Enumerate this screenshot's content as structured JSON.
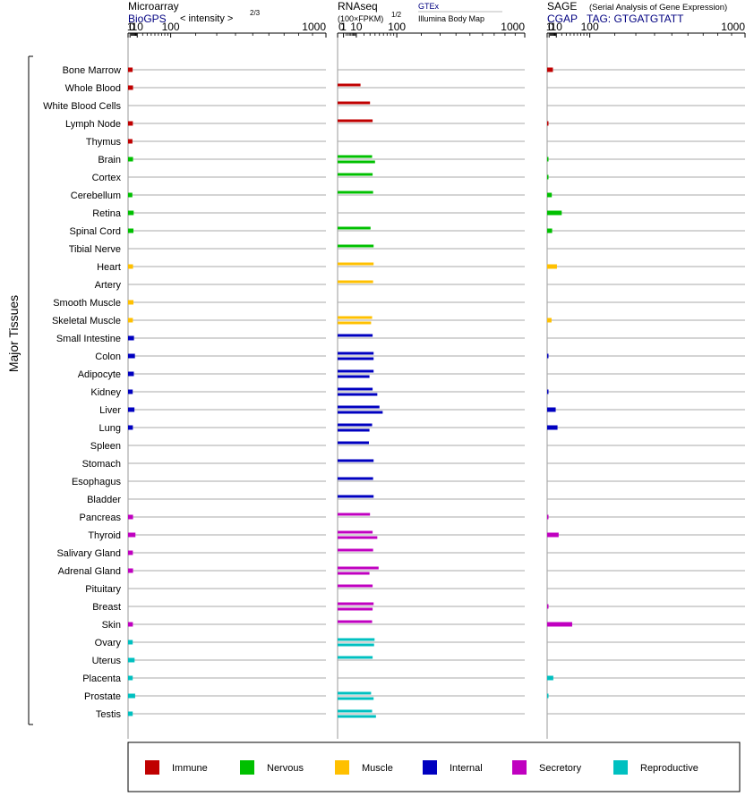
{
  "y_axis_label": "Major Tissues",
  "tissues": [
    "Bone Marrow",
    "Whole Blood",
    "White Blood Cells",
    "Lymph Node",
    "Thymus",
    "Brain",
    "Cortex",
    "Cerebellum",
    "Retina",
    "Spinal Cord",
    "Tibial Nerve",
    "Heart",
    "Artery",
    "Smooth Muscle",
    "Skeletal Muscle",
    "Small Intestine",
    "Colon",
    "Adipocyte",
    "Kidney",
    "Liver",
    "Lung",
    "Spleen",
    "Stomach",
    "Esophagus",
    "Bladder",
    "Pancreas",
    "Thyroid",
    "Salivary Gland",
    "Adrenal Gland",
    "Pituitary",
    "Breast",
    "Skin",
    "Ovary",
    "Uterus",
    "Placenta",
    "Prostate",
    "Testis"
  ],
  "categories": {
    "Immune": "#c00000",
    "Nervous": "#00c000",
    "Muscle": "#ffc000",
    "Internal": "#0000c0",
    "Secretory": "#c000c0",
    "Reproductive": "#00c0c0"
  },
  "legend": [
    "Immune",
    "Nervous",
    "Muscle",
    "Internal",
    "Secretory",
    "Reproductive"
  ],
  "tissue_category": [
    "Immune",
    "Immune",
    "Immune",
    "Immune",
    "Immune",
    "Nervous",
    "Nervous",
    "Nervous",
    "Nervous",
    "Nervous",
    "Nervous",
    "Muscle",
    "Muscle",
    "Muscle",
    "Muscle",
    "Internal",
    "Internal",
    "Internal",
    "Internal",
    "Internal",
    "Internal",
    "Internal",
    "Internal",
    "Internal",
    "Internal",
    "Secretory",
    "Secretory",
    "Secretory",
    "Secretory",
    "Secretory",
    "Secretory",
    "Secretory",
    "Reproductive",
    "Reproductive",
    "Reproductive",
    "Reproductive",
    "Reproductive"
  ],
  "panels": [
    {
      "title": "Microarray",
      "subtitle": "BioGPS",
      "subtitle_extra": "< intensity >",
      "exponent": "2/3"
    },
    {
      "title": "RNAseq",
      "unit": "(100×FPKM)",
      "exponent": "1/2",
      "source_a": "GTEx",
      "source_b": "Illumina Body Map"
    },
    {
      "title": "SAGE",
      "title_extra": "(Serial Analysis of Gene Expression)",
      "subtitle": "CGAP",
      "tag": "TAG: GTGATGTATT"
    }
  ],
  "chart_data": {
    "type": "bar",
    "orientation": "horizontal",
    "x_ticks": [
      "0",
      "1",
      "10",
      "100",
      "1000"
    ],
    "x_tick_values": [
      0,
      1,
      10,
      100,
      1000
    ],
    "xlim": [
      0,
      1000
    ],
    "x_scale": "power",
    "panels": [
      {
        "name": "Microarray",
        "exponent": 0.6667,
        "values": [
          3.5,
          4,
          null,
          3.8,
          3.3,
          4,
          null,
          3.2,
          4.8,
          4.5,
          null,
          4,
          null,
          4.5,
          3.8,
          5.2,
          6.5,
          5,
          3.6,
          5.8,
          3.8,
          null,
          null,
          null,
          null,
          4,
          7.2,
          3.8,
          4,
          null,
          null,
          3.8,
          3.6,
          6,
          3.6,
          6.8,
          3.6
        ],
        "values_b": []
      },
      {
        "name": "RNAseq",
        "exponent": 0.5,
        "values": [
          null,
          15,
          null,
          null,
          null,
          35,
          null,
          null,
          null,
          null,
          null,
          null,
          null,
          null,
          null,
          null,
          null,
          null,
          null,
          null,
          null,
          null,
          null,
          null,
          null,
          null,
          null,
          null,
          null,
          null,
          null,
          null,
          null,
          null,
          null,
          null,
          null
        ],
        "values_a": [
          null,
          null,
          null,
          null,
          null,
          35,
          null,
          null,
          null,
          null,
          null,
          null,
          null,
          null,
          null,
          null,
          null,
          null,
          null,
          null,
          null,
          null,
          null,
          null,
          null,
          null,
          null,
          null,
          null,
          null,
          null,
          null,
          null,
          null,
          null,
          null,
          null
        ],
        "series": [
          {
            "name": "GTEx",
            "values": [
              null,
              15,
              30,
              null,
              null,
              34,
              null,
              null,
              null,
              null,
              null,
              null,
              null,
              null,
              34,
              null,
              37,
              37,
              35,
              50,
              34,
              null,
              null,
              null,
              null,
              null,
              35,
              null,
              48,
              null,
              37,
              null,
              39,
              null,
              null,
              32,
              34
            ]
          },
          {
            "name": "Illumina Body Map",
            "values": [
              null,
              null,
              null,
              35,
              null,
              40,
              35,
              36,
              null,
              31,
              37,
              37,
              36,
              null,
              32,
              35,
              37,
              29,
              45,
              58,
              29,
              28,
              37,
              36,
              37,
              30,
              45,
              36,
              29,
              35,
              35,
              34,
              38,
              35,
              null,
              37,
              42
            ]
          }
        ]
      },
      {
        "name": "SAGE",
        "exponent": 0.6667,
        "values": [
          5,
          null,
          null,
          0.1,
          null,
          0.1,
          0.1,
          3.6,
          20,
          4,
          null,
          11,
          null,
          null,
          3.3,
          null,
          0.1,
          null,
          0.1,
          9,
          12,
          null,
          null,
          null,
          null,
          0.1,
          14,
          null,
          null,
          null,
          0.1,
          45,
          null,
          null,
          5.5,
          0.1,
          null
        ]
      }
    ]
  }
}
